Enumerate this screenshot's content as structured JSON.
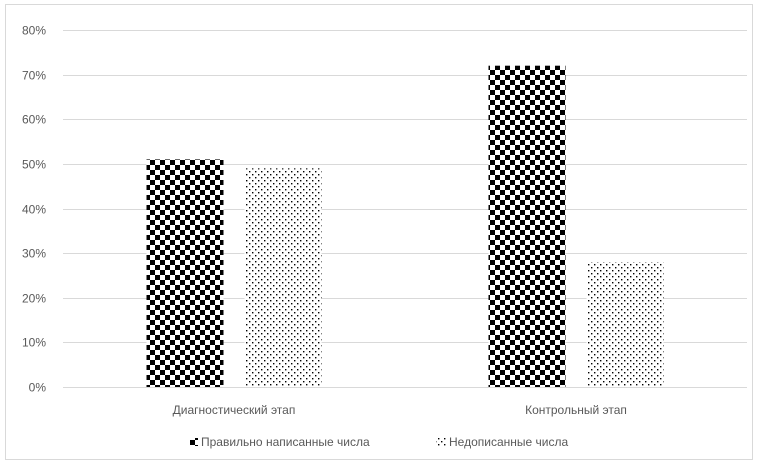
{
  "chart_data": {
    "type": "bar",
    "title": "",
    "xlabel": "",
    "ylabel": "",
    "ylim": [
      0,
      0.8
    ],
    "yticks": [
      0,
      0.1,
      0.2,
      0.3,
      0.4,
      0.5,
      0.6,
      0.7,
      0.8
    ],
    "ytick_labels": [
      "0%",
      "10%",
      "20%",
      "30%",
      "40%",
      "50%",
      "60%",
      "70%",
      "80%"
    ],
    "grid": true,
    "legend_position": "bottom",
    "categories": [
      "Диагностический этап",
      "Контрольный этап"
    ],
    "series": [
      {
        "name": "Правильно написанные числа",
        "values": [
          0.51,
          0.72
        ],
        "pattern": "checkerboard",
        "color": "#000000"
      },
      {
        "name": "Недописанные числа",
        "values": [
          0.49,
          0.28
        ],
        "pattern": "dotted",
        "color": "#000000"
      }
    ]
  }
}
